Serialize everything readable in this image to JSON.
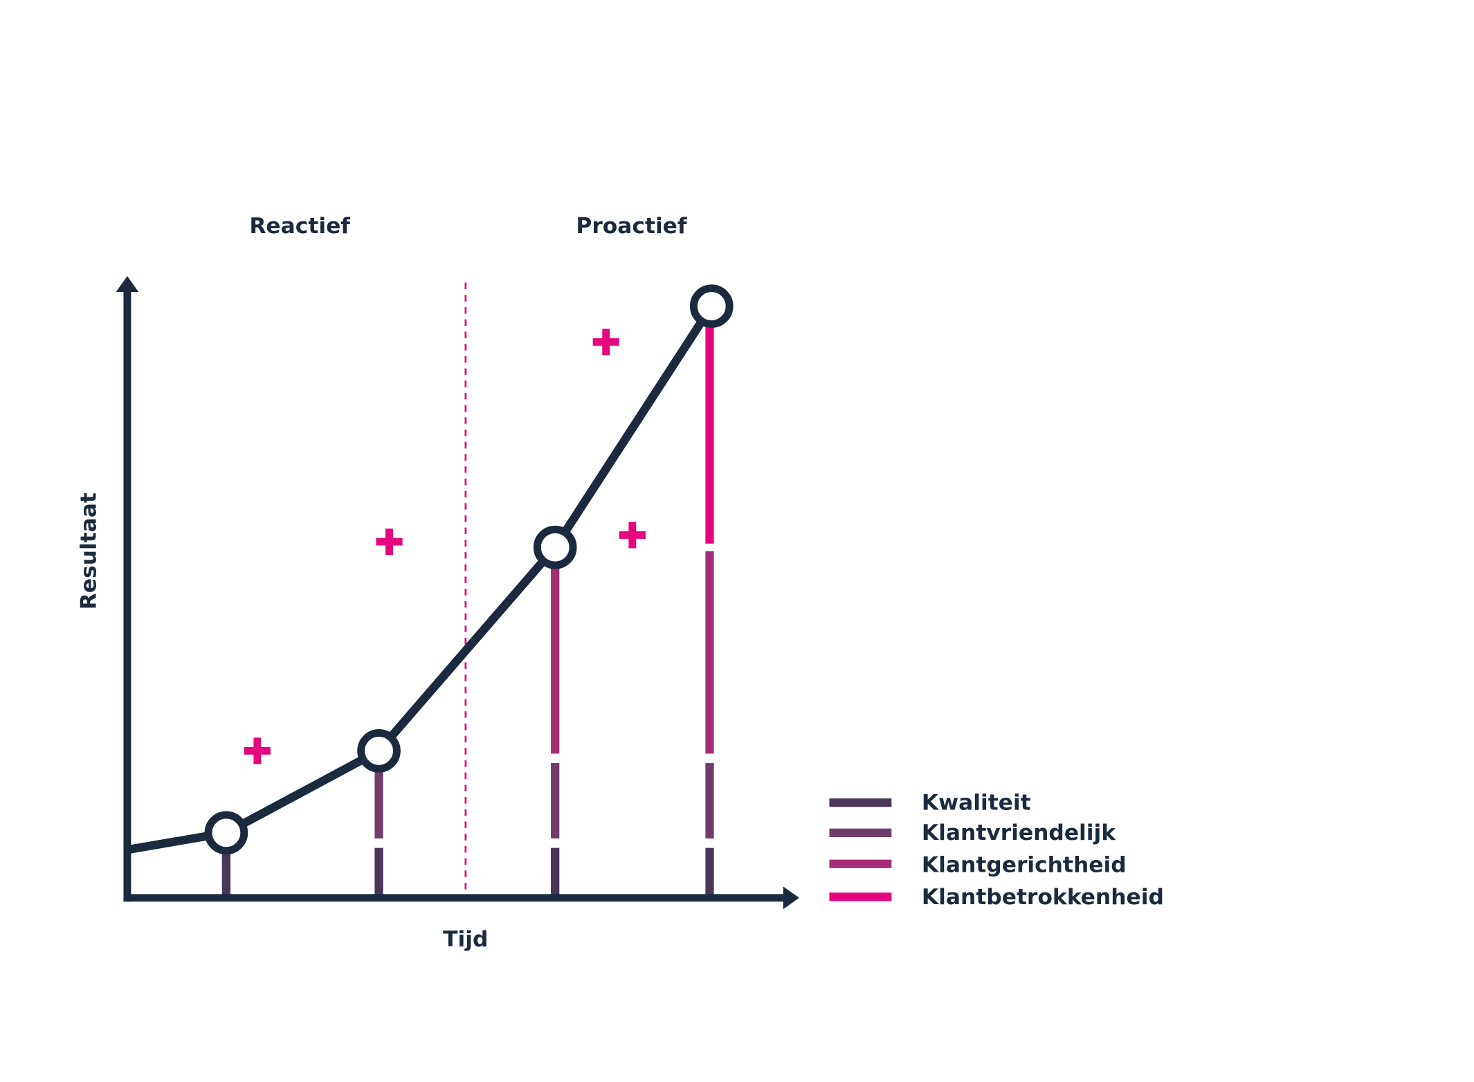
{
  "phases": [
    "Reactief",
    "Proactief"
  ],
  "axes": {
    "y": "Resultaat",
    "x": "Tijd"
  },
  "legend": [
    "Kwaliteit",
    "Klantvriendelijk",
    "Klantgerichtheid",
    "Klantbetrokkenheid"
  ]
}
